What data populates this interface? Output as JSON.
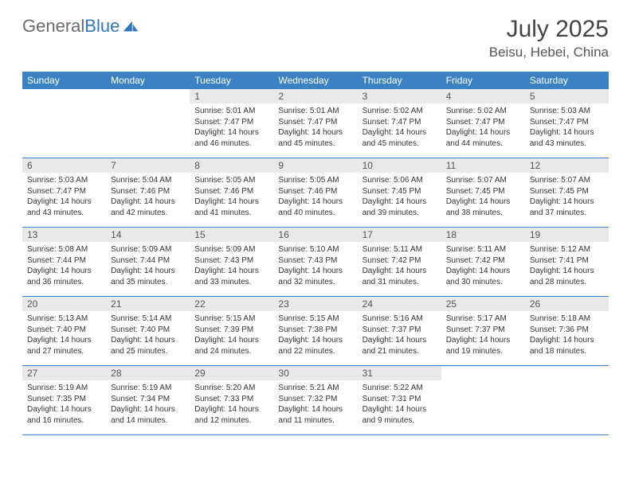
{
  "brand": {
    "part1": "General",
    "part2": "Blue"
  },
  "title": "July 2025",
  "location": "Beisu, Hebei, China",
  "colors": {
    "header_bg": "#3b82c4",
    "header_text": "#ffffff",
    "daynum_bg": "#e9e9e9",
    "text": "#333333",
    "rule": "#3b82c4",
    "brand_gray": "#6b6b6b",
    "brand_blue": "#2f78bd"
  },
  "weekdays": [
    "Sunday",
    "Monday",
    "Tuesday",
    "Wednesday",
    "Thursday",
    "Friday",
    "Saturday"
  ],
  "weeks": [
    [
      null,
      null,
      {
        "n": "1",
        "sr": "5:01 AM",
        "ss": "7:47 PM",
        "dl": "14 hours and 46 minutes."
      },
      {
        "n": "2",
        "sr": "5:01 AM",
        "ss": "7:47 PM",
        "dl": "14 hours and 45 minutes."
      },
      {
        "n": "3",
        "sr": "5:02 AM",
        "ss": "7:47 PM",
        "dl": "14 hours and 45 minutes."
      },
      {
        "n": "4",
        "sr": "5:02 AM",
        "ss": "7:47 PM",
        "dl": "14 hours and 44 minutes."
      },
      {
        "n": "5",
        "sr": "5:03 AM",
        "ss": "7:47 PM",
        "dl": "14 hours and 43 minutes."
      }
    ],
    [
      {
        "n": "6",
        "sr": "5:03 AM",
        "ss": "7:47 PM",
        "dl": "14 hours and 43 minutes."
      },
      {
        "n": "7",
        "sr": "5:04 AM",
        "ss": "7:46 PM",
        "dl": "14 hours and 42 minutes."
      },
      {
        "n": "8",
        "sr": "5:05 AM",
        "ss": "7:46 PM",
        "dl": "14 hours and 41 minutes."
      },
      {
        "n": "9",
        "sr": "5:05 AM",
        "ss": "7:46 PM",
        "dl": "14 hours and 40 minutes."
      },
      {
        "n": "10",
        "sr": "5:06 AM",
        "ss": "7:45 PM",
        "dl": "14 hours and 39 minutes."
      },
      {
        "n": "11",
        "sr": "5:07 AM",
        "ss": "7:45 PM",
        "dl": "14 hours and 38 minutes."
      },
      {
        "n": "12",
        "sr": "5:07 AM",
        "ss": "7:45 PM",
        "dl": "14 hours and 37 minutes."
      }
    ],
    [
      {
        "n": "13",
        "sr": "5:08 AM",
        "ss": "7:44 PM",
        "dl": "14 hours and 36 minutes."
      },
      {
        "n": "14",
        "sr": "5:09 AM",
        "ss": "7:44 PM",
        "dl": "14 hours and 35 minutes."
      },
      {
        "n": "15",
        "sr": "5:09 AM",
        "ss": "7:43 PM",
        "dl": "14 hours and 33 minutes."
      },
      {
        "n": "16",
        "sr": "5:10 AM",
        "ss": "7:43 PM",
        "dl": "14 hours and 32 minutes."
      },
      {
        "n": "17",
        "sr": "5:11 AM",
        "ss": "7:42 PM",
        "dl": "14 hours and 31 minutes."
      },
      {
        "n": "18",
        "sr": "5:11 AM",
        "ss": "7:42 PM",
        "dl": "14 hours and 30 minutes."
      },
      {
        "n": "19",
        "sr": "5:12 AM",
        "ss": "7:41 PM",
        "dl": "14 hours and 28 minutes."
      }
    ],
    [
      {
        "n": "20",
        "sr": "5:13 AM",
        "ss": "7:40 PM",
        "dl": "14 hours and 27 minutes."
      },
      {
        "n": "21",
        "sr": "5:14 AM",
        "ss": "7:40 PM",
        "dl": "14 hours and 25 minutes."
      },
      {
        "n": "22",
        "sr": "5:15 AM",
        "ss": "7:39 PM",
        "dl": "14 hours and 24 minutes."
      },
      {
        "n": "23",
        "sr": "5:15 AM",
        "ss": "7:38 PM",
        "dl": "14 hours and 22 minutes."
      },
      {
        "n": "24",
        "sr": "5:16 AM",
        "ss": "7:37 PM",
        "dl": "14 hours and 21 minutes."
      },
      {
        "n": "25",
        "sr": "5:17 AM",
        "ss": "7:37 PM",
        "dl": "14 hours and 19 minutes."
      },
      {
        "n": "26",
        "sr": "5:18 AM",
        "ss": "7:36 PM",
        "dl": "14 hours and 18 minutes."
      }
    ],
    [
      {
        "n": "27",
        "sr": "5:19 AM",
        "ss": "7:35 PM",
        "dl": "14 hours and 16 minutes."
      },
      {
        "n": "28",
        "sr": "5:19 AM",
        "ss": "7:34 PM",
        "dl": "14 hours and 14 minutes."
      },
      {
        "n": "29",
        "sr": "5:20 AM",
        "ss": "7:33 PM",
        "dl": "14 hours and 12 minutes."
      },
      {
        "n": "30",
        "sr": "5:21 AM",
        "ss": "7:32 PM",
        "dl": "14 hours and 11 minutes."
      },
      {
        "n": "31",
        "sr": "5:22 AM",
        "ss": "7:31 PM",
        "dl": "14 hours and 9 minutes."
      },
      null,
      null
    ]
  ],
  "labels": {
    "sunrise": "Sunrise: ",
    "sunset": "Sunset: ",
    "daylight": "Daylight: "
  }
}
